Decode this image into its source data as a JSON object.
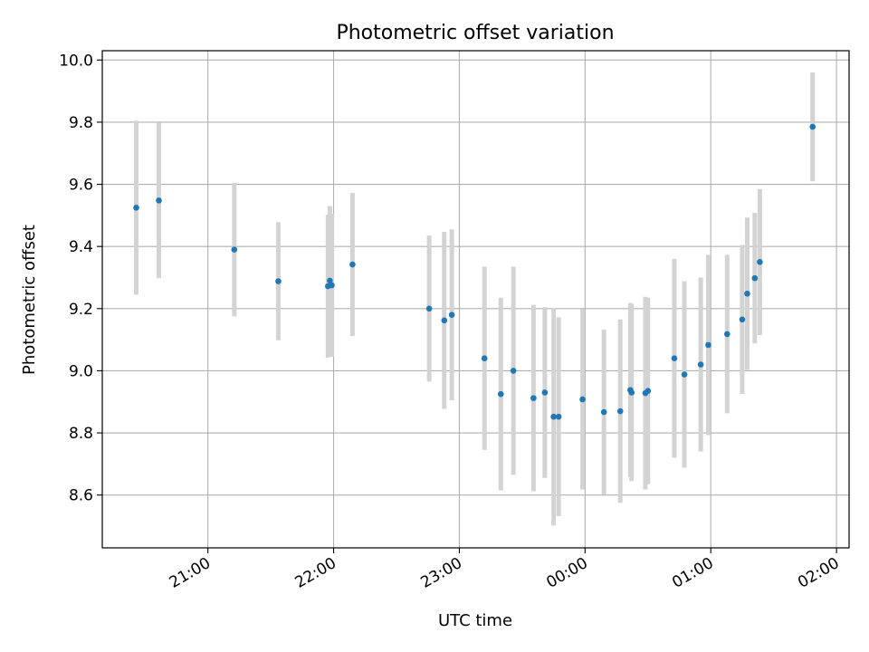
{
  "chart_data": {
    "type": "scatter",
    "title": "Photometric offset variation",
    "xlabel": "UTC time",
    "ylabel": "Photometric offset",
    "x_unit": "UTC hours (clock times after midnight written as 24+)",
    "xlim": [
      20.16,
      26.1
    ],
    "ylim": [
      8.43,
      10.03
    ],
    "x_ticks": [
      {
        "value": 21,
        "label": "21:00"
      },
      {
        "value": 22,
        "label": "22:00"
      },
      {
        "value": 23,
        "label": "23:00"
      },
      {
        "value": 24,
        "label": "00:00"
      },
      {
        "value": 25,
        "label": "01:00"
      },
      {
        "value": 26,
        "label": "02:00"
      }
    ],
    "y_ticks": [
      {
        "value": 8.6,
        "label": "8.6"
      },
      {
        "value": 8.8,
        "label": "8.8"
      },
      {
        "value": 9.0,
        "label": "9.0"
      },
      {
        "value": 9.2,
        "label": "9.2"
      },
      {
        "value": 9.4,
        "label": "9.4"
      },
      {
        "value": 9.6,
        "label": "9.6"
      },
      {
        "value": 9.8,
        "label": "9.8"
      },
      {
        "value": 10.0,
        "label": "10.0"
      }
    ],
    "grid": true,
    "marker_color": "#1f77b4",
    "errorbar_color": "#d3d3d3",
    "points": [
      {
        "x": 20.43,
        "y": 9.525,
        "err": 0.28
      },
      {
        "x": 20.61,
        "y": 9.548,
        "err": 0.25
      },
      {
        "x": 21.21,
        "y": 9.39,
        "err": 0.215
      },
      {
        "x": 21.56,
        "y": 9.288,
        "err": 0.19
      },
      {
        "x": 21.955,
        "y": 9.272,
        "err": 0.23
      },
      {
        "x": 21.97,
        "y": 9.29,
        "err": 0.24
      },
      {
        "x": 21.985,
        "y": 9.275,
        "err": 0.23
      },
      {
        "x": 22.15,
        "y": 9.342,
        "err": 0.23
      },
      {
        "x": 22.76,
        "y": 9.2,
        "err": 0.235
      },
      {
        "x": 22.88,
        "y": 9.162,
        "err": 0.285
      },
      {
        "x": 22.94,
        "y": 9.18,
        "err": 0.275
      },
      {
        "x": 23.2,
        "y": 9.04,
        "err": 0.295
      },
      {
        "x": 23.33,
        "y": 8.925,
        "err": 0.31
      },
      {
        "x": 23.43,
        "y": 9.0,
        "err": 0.335
      },
      {
        "x": 23.59,
        "y": 8.912,
        "err": 0.3
      },
      {
        "x": 23.68,
        "y": 8.93,
        "err": 0.275
      },
      {
        "x": 23.75,
        "y": 8.852,
        "err": 0.35
      },
      {
        "x": 23.79,
        "y": 8.852,
        "err": 0.32
      },
      {
        "x": 23.98,
        "y": 8.908,
        "err": 0.29
      },
      {
        "x": 24.15,
        "y": 8.867,
        "err": 0.265
      },
      {
        "x": 24.28,
        "y": 8.87,
        "err": 0.295
      },
      {
        "x": 24.36,
        "y": 8.938,
        "err": 0.28
      },
      {
        "x": 24.37,
        "y": 8.93,
        "err": 0.285
      },
      {
        "x": 24.48,
        "y": 8.928,
        "err": 0.31
      },
      {
        "x": 24.5,
        "y": 8.935,
        "err": 0.3
      },
      {
        "x": 24.71,
        "y": 9.04,
        "err": 0.32
      },
      {
        "x": 24.79,
        "y": 8.988,
        "err": 0.3
      },
      {
        "x": 24.92,
        "y": 9.02,
        "err": 0.28
      },
      {
        "x": 24.98,
        "y": 9.083,
        "err": 0.29
      },
      {
        "x": 25.13,
        "y": 9.118,
        "err": 0.255
      },
      {
        "x": 25.25,
        "y": 9.165,
        "err": 0.24
      },
      {
        "x": 25.29,
        "y": 9.248,
        "err": 0.245
      },
      {
        "x": 25.35,
        "y": 9.298,
        "err": 0.21
      },
      {
        "x": 25.39,
        "y": 9.35,
        "err": 0.235
      },
      {
        "x": 25.81,
        "y": 9.785,
        "err": 0.175
      }
    ]
  }
}
